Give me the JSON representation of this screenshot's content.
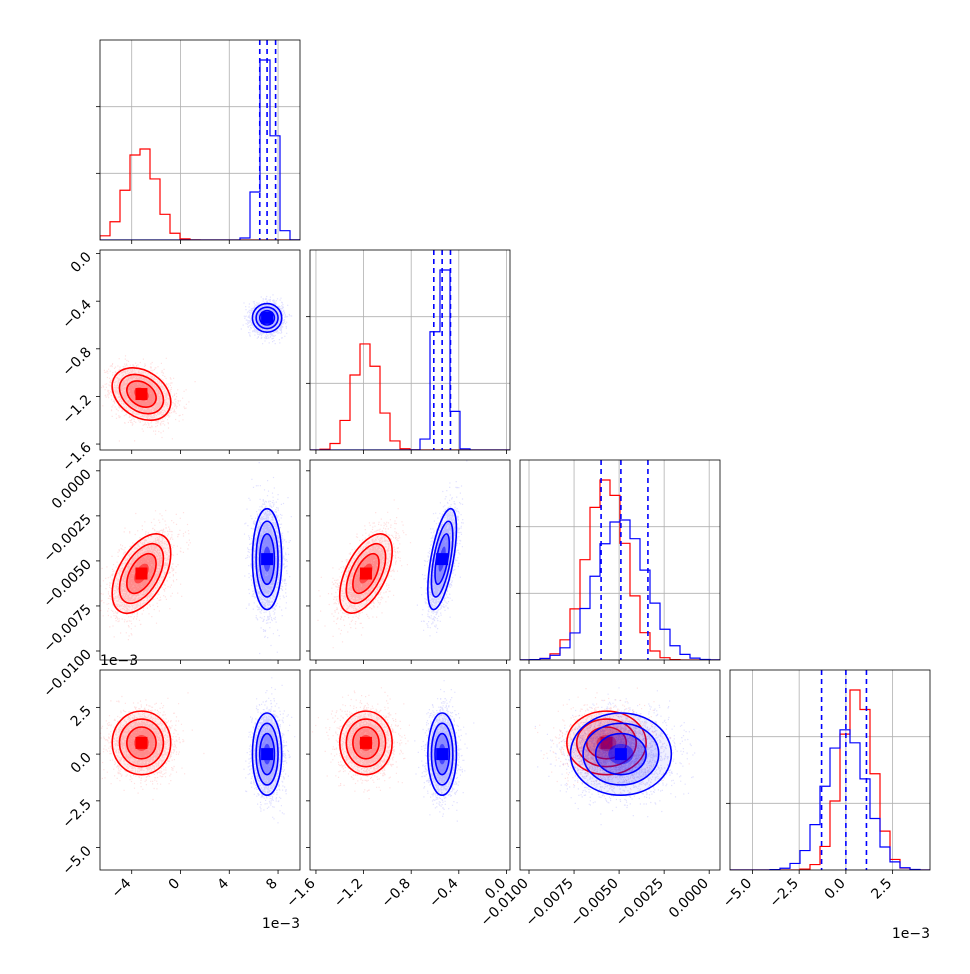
{
  "colors": {
    "red": "#ff0000",
    "blue": "#0000ff",
    "grid": "#b0b0b0",
    "axes": "#000000"
  },
  "offset_labels": {
    "x0": "1e−3",
    "y3": "1e−3",
    "x3": "1e−3"
  },
  "chart_data": {
    "type": "corner",
    "grid": true,
    "title": "",
    "parameters": [
      {
        "name": "",
        "range": [
          -0.0066,
          0.0098
        ],
        "ticks": [
          -4,
          0,
          4,
          8
        ],
        "tick_labels": [
          "−4",
          "0",
          "4",
          "8"
        ],
        "tick_scale": 0.001,
        "offset_label": "1e−3"
      },
      {
        "name": "",
        "range": [
          -0.00165,
          3e-05
        ],
        "ticks": [
          -1.6,
          -1.2,
          -0.8,
          -0.4,
          0.0
        ],
        "tick_labels": [
          "−1.6",
          "−1.2",
          "−0.8",
          "−0.4",
          "0.0"
        ],
        "tick_scale": 0.001,
        "offset_label": "1e−3"
      },
      {
        "name": "",
        "range": [
          -0.0105,
          0.0006
        ],
        "ticks": [
          -0.01,
          -0.0075,
          -0.005,
          -0.0025,
          0.0
        ],
        "tick_labels": [
          "−0.0100",
          "−0.0075",
          "−0.0050",
          "−0.0025",
          "0.0000"
        ],
        "tick_scale": 1,
        "offset_label": ""
      },
      {
        "name": "",
        "range": [
          -0.0062,
          0.0045
        ],
        "ticks": [
          -5.0,
          -2.5,
          0.0,
          2.5
        ],
        "tick_labels": [
          "−5.0",
          "−2.5",
          "0.0",
          "2.5"
        ],
        "tick_scale": 0.001,
        "offset_label": "1e−3"
      }
    ],
    "series": [
      {
        "color": "#ff0000",
        "means": [
          -0.0032,
          -0.00118,
          -0.0057,
          0.0006
        ],
        "stds": [
          0.0012,
          0.00011,
          0.0011,
          0.00085
        ],
        "correlations": {
          "1-0": -0.3,
          "2-0": 0.5,
          "2-1": 0.55,
          "3-0": 0.0,
          "3-1": 0.0,
          "3-2": 0.0
        },
        "quantiles": [
          null,
          null,
          null,
          null
        ]
      },
      {
        "color": "#0000ff",
        "means": [
          0.0071,
          -0.00054,
          -0.0049,
          0.0
        ],
        "stds": [
          0.0006,
          6e-05,
          0.0014,
          0.0011
        ],
        "correlations": {
          "1-0": 0.0,
          "2-0": 0.0,
          "2-1": 0.6,
          "3-0": 0.0,
          "3-1": 0.0,
          "3-2": 0.0
        },
        "quantiles": [
          [
            0.0065,
            0.0071,
            0.0078
          ],
          [
            -0.00061,
            -0.00054,
            -0.00047
          ],
          [
            -0.006,
            -0.0049,
            -0.0034
          ],
          [
            -0.0013,
            0.0,
            0.0011
          ]
        ]
      }
    ]
  }
}
